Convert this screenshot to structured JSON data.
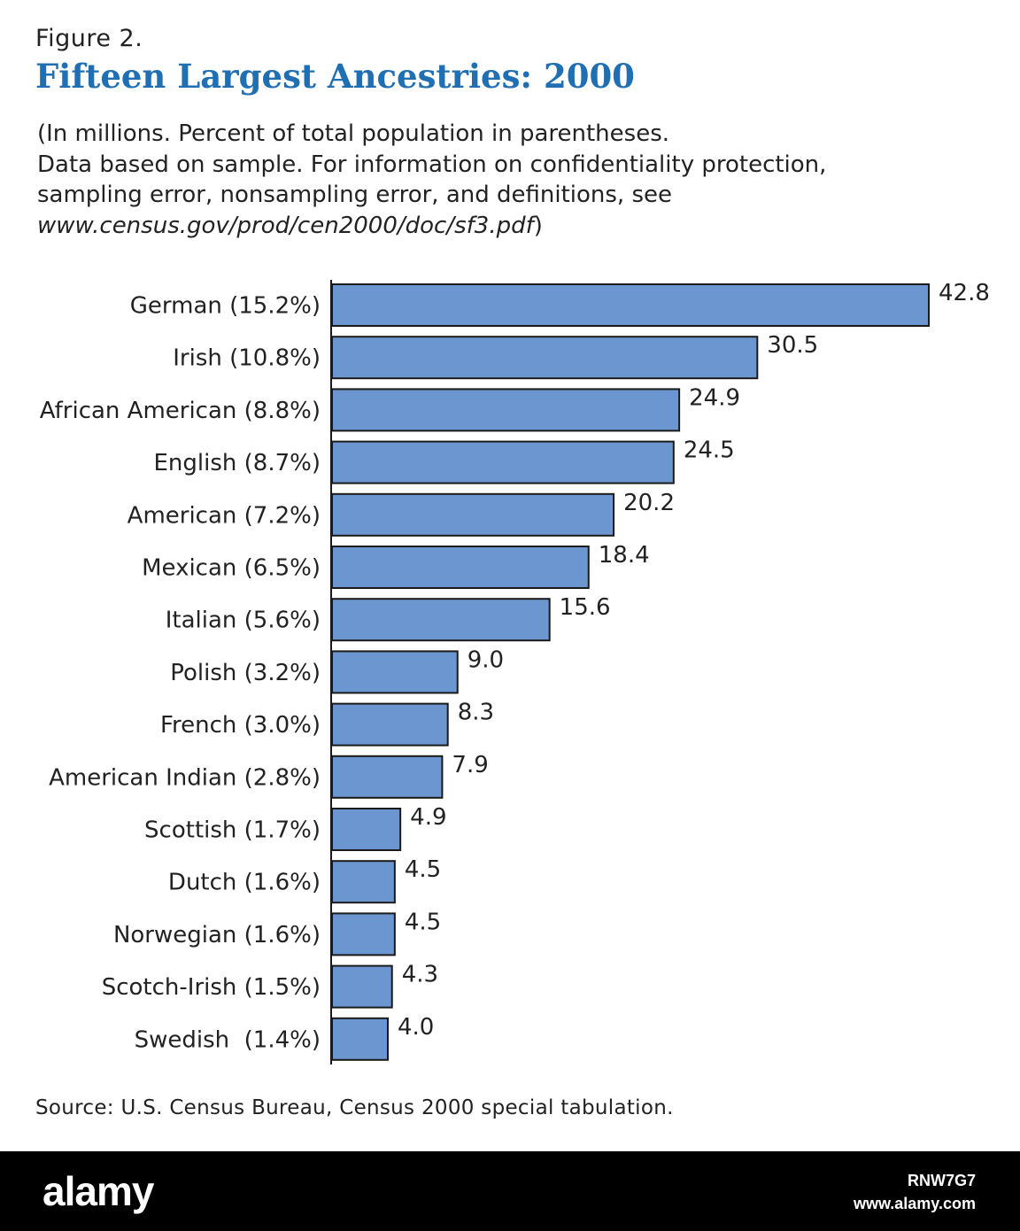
{
  "figure": {
    "label": "Figure 2.",
    "title": "Fifteen Largest Ancestries: 2000",
    "subtitle_lines": [
      "(In millions. Percent of total population in parentheses.",
      "Data based on sample.  For information on confidentiality protection,",
      "sampling error, nonsampling error, and definitions, see"
    ],
    "url": "www.census.gov/prod/cen2000/doc/sf3.pdf",
    "url_suffix": ")",
    "source": "Source:  U.S. Census Bureau, Census 2000 special tabulation."
  },
  "chart_data": {
    "type": "bar",
    "orientation": "horizontal",
    "categories": [
      "German (15.2%)",
      "Irish (10.8%)",
      "African American (8.8%)",
      "English (8.7%)",
      "American (7.2%)",
      "Mexican (6.5%)",
      "Italian (5.6%)",
      "Polish (3.2%)",
      "French (3.0%)",
      "American Indian (2.8%)",
      "Scottish (1.7%)",
      "Dutch (1.6%)",
      "Norwegian (1.6%)",
      "Scotch-Irish (1.5%)",
      "Swedish  (1.4%)"
    ],
    "values": [
      42.8,
      30.5,
      24.9,
      24.5,
      20.2,
      18.4,
      15.6,
      9.0,
      8.3,
      7.9,
      4.9,
      4.5,
      4.5,
      4.3,
      4.0
    ],
    "value_labels": [
      "42.8",
      "30.5",
      "24.9",
      "24.5",
      "20.2",
      "18.4",
      "15.6",
      "9.0",
      "8.3",
      "7.9",
      "4.9",
      "4.5",
      "4.5",
      "4.3",
      "4.0"
    ],
    "xlim": [
      0,
      42.8
    ],
    "grid": false,
    "colors": {
      "bar": "#6b96cf",
      "bar_stroke": "#1a1a1a",
      "text": "#222222"
    }
  },
  "footer": {
    "logo": "alamy",
    "image_id": "RNW7G7",
    "site": "www.alamy.com"
  }
}
